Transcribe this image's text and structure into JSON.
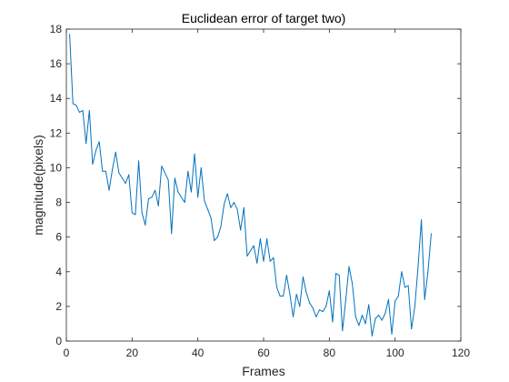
{
  "chart_data": {
    "type": "line",
    "title": "Euclidean error of target two)",
    "xlabel": "Frames",
    "ylabel": "magnitude(pixels)",
    "xlim": [
      0,
      120
    ],
    "ylim": [
      0,
      18
    ],
    "xticks": [
      0,
      20,
      40,
      60,
      80,
      100,
      120
    ],
    "yticks": [
      0,
      2,
      4,
      6,
      8,
      10,
      12,
      14,
      16,
      18
    ],
    "grid": false,
    "series": [
      {
        "color": "#0072BD",
        "x": [
          1,
          2,
          3,
          4,
          5,
          6,
          7,
          8,
          9,
          10,
          11,
          12,
          13,
          14,
          15,
          16,
          17,
          18,
          19,
          20,
          21,
          22,
          23,
          24,
          25,
          26,
          27,
          28,
          29,
          30,
          31,
          32,
          33,
          34,
          35,
          36,
          37,
          38,
          39,
          40,
          41,
          42,
          43,
          44,
          45,
          46,
          47,
          48,
          49,
          50,
          51,
          52,
          53,
          54,
          55,
          56,
          57,
          58,
          59,
          60,
          61,
          62,
          63,
          64,
          65,
          66,
          67,
          68,
          69,
          70,
          71,
          72,
          73,
          74,
          75,
          76,
          77,
          78,
          79,
          80,
          81,
          82,
          83,
          84,
          85,
          86,
          87,
          88,
          89,
          90,
          91,
          92,
          93,
          94,
          95,
          96,
          97,
          98,
          99,
          100,
          101,
          102,
          103,
          104,
          105,
          106,
          107,
          108,
          109,
          110,
          111
        ],
        "y": [
          17.7,
          13.7,
          13.6,
          13.2,
          13.3,
          11.4,
          13.3,
          10.2,
          11.0,
          11.5,
          9.8,
          9.8,
          8.7,
          9.9,
          10.9,
          9.7,
          9.4,
          9.1,
          9.6,
          7.4,
          7.3,
          10.4,
          7.4,
          6.7,
          8.2,
          8.3,
          8.7,
          7.8,
          10.1,
          9.7,
          9.3,
          6.2,
          9.4,
          8.6,
          8.3,
          8.0,
          9.8,
          8.6,
          10.8,
          8.3,
          10.0,
          8.1,
          7.6,
          7.1,
          5.8,
          6.0,
          6.6,
          7.9,
          8.5,
          7.7,
          8.0,
          7.6,
          6.4,
          7.7,
          4.9,
          5.2,
          5.5,
          4.5,
          5.9,
          4.6,
          5.9,
          4.6,
          4.8,
          3.1,
          2.6,
          2.6,
          3.8,
          2.7,
          1.4,
          2.7,
          2.0,
          3.7,
          2.8,
          2.2,
          1.9,
          1.4,
          1.8,
          1.7,
          2.0,
          2.9,
          1.1,
          3.9,
          3.8,
          0.6,
          2.4,
          4.3,
          3.3,
          1.4,
          0.9,
          1.5,
          1.0,
          2.1,
          0.3,
          1.3,
          1.5,
          1.2,
          1.6,
          2.4,
          0.4,
          2.3,
          2.6,
          4.0,
          3.1,
          3.2,
          0.7,
          2.0,
          4.3,
          7.0,
          2.4,
          4.0,
          6.2
        ]
      }
    ]
  }
}
